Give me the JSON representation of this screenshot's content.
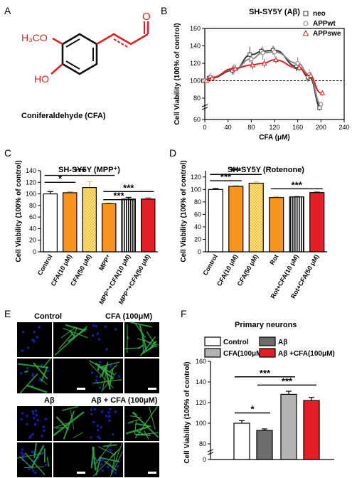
{
  "panel_letters": [
    "A",
    "B",
    "C",
    "D",
    "E",
    "F"
  ],
  "panel_a": {
    "caption": "Coniferaldehyde (CFA)",
    "labels": {
      "methoxy": "H₃CO",
      "hydroxyl": "HO",
      "aldehyde": "O"
    }
  },
  "panel_e": {
    "titles": [
      "Control",
      "CFA (100μM)",
      "Aβ",
      "Aβ + CFA (100μM)"
    ]
  },
  "colors": {
    "neo": "#333333",
    "appwt": "#888888",
    "appswe": "#e31e24",
    "orange": "#f7941d",
    "black": "#000000",
    "red": "#e31e24",
    "dgray": "#6d6d6d",
    "lgray": "#b3b3b3",
    "checker": "#f5c342",
    "green": "#35b34a",
    "blue": "#1a1aaa"
  },
  "chart_data": [
    {
      "id": "B",
      "type": "line",
      "title": "SH-SY5Y (Aβ)",
      "xlabel": "CFA (μM)",
      "ylabel": "Cell Viability (100% of control)",
      "xlim": [
        0,
        240
      ],
      "ylim": [
        60,
        160
      ],
      "y_axis_break": true,
      "xticks": [
        "0",
        "40",
        "80",
        "120",
        "160",
        "200",
        "240"
      ],
      "yticks": [
        "60",
        "80",
        "100",
        "120",
        "140",
        "160"
      ],
      "reference_line": 100,
      "legend_position": "top-right",
      "series": [
        {
          "name": "neo",
          "marker": "square",
          "x": [
            0,
            10,
            50,
            80,
            100,
            120,
            160,
            180,
            200
          ],
          "y": [
            100,
            103,
            112,
            130,
            134,
            135,
            116,
            104,
            69
          ],
          "err": [
            2,
            4,
            5,
            9,
            4,
            5,
            5,
            5,
            3
          ]
        },
        {
          "name": "APPwt",
          "marker": "circle",
          "x": [
            0,
            10,
            50,
            80,
            100,
            120,
            160,
            180,
            200
          ],
          "y": [
            100,
            104,
            113,
            125,
            132,
            133,
            120,
            107,
            73
          ],
          "err": [
            2,
            5,
            6,
            6,
            8,
            6,
            7,
            6,
            3
          ]
        },
        {
          "name": "APPswe",
          "marker": "triangle",
          "x": [
            0,
            10,
            50,
            80,
            100,
            120,
            160,
            180,
            200
          ],
          "y": [
            100,
            103,
            114,
            118,
            120,
            124,
            115,
            106,
            86
          ],
          "err": [
            2,
            3,
            4,
            5,
            5,
            4,
            4,
            4,
            3
          ]
        }
      ]
    },
    {
      "id": "C",
      "type": "bar",
      "title": "SH-SY5Y (MPP⁺)",
      "ylabel": "Cell Viability (100% of control)",
      "ylim": [
        0,
        140
      ],
      "yticks": [
        "0",
        "20",
        "40",
        "60",
        "80",
        "100",
        "120",
        "140"
      ],
      "categories": [
        "Control",
        "CFA(10 μM)",
        "CFA(50 μM)",
        "MPP⁺",
        "MPP⁺+CFA(10 μM)",
        "MPP⁺+CFA(50 μM)"
      ],
      "values": [
        100,
        102,
        111,
        83,
        91,
        91
      ],
      "errors": [
        4,
        1.5,
        10,
        1,
        3,
        2
      ],
      "significance": [
        "***",
        "*",
        "***",
        "***"
      ]
    },
    {
      "id": "D",
      "type": "bar",
      "title": "SH-SY5Y (Rotenone)",
      "ylabel": "Cell Viability (100% of control)",
      "ylim": [
        0,
        130
      ],
      "yticks": [
        "0",
        "20",
        "40",
        "60",
        "80",
        "100",
        "120"
      ],
      "categories": [
        "Control",
        "CFA(10 μM)",
        "CFA(50 μM)",
        "Rot",
        "Rot+CFA(10 μM)",
        "Rot+CFA(50 μM)"
      ],
      "values": [
        100,
        105,
        110,
        87,
        88,
        95
      ],
      "errors": [
        1.5,
        1,
        2,
        1,
        0.5,
        1
      ],
      "significance": [
        "***",
        "***",
        "***"
      ]
    },
    {
      "id": "F",
      "type": "bar",
      "title": "Primary neurons",
      "ylabel": "Cell Viability (100% of control)",
      "ylim": [
        0,
        160
      ],
      "y_axis_break": true,
      "yticks": [
        "0",
        "80",
        "100",
        "120",
        "140",
        "160"
      ],
      "categories": [
        "Control",
        "Aβ",
        "CFA(100μM)",
        "Aβ +CFA(100μM)"
      ],
      "values": [
        100,
        93,
        128,
        122
      ],
      "errors": [
        2.5,
        1.5,
        3,
        3
      ],
      "significance": [
        "***",
        "***",
        "*"
      ],
      "legend_position": "top"
    }
  ]
}
